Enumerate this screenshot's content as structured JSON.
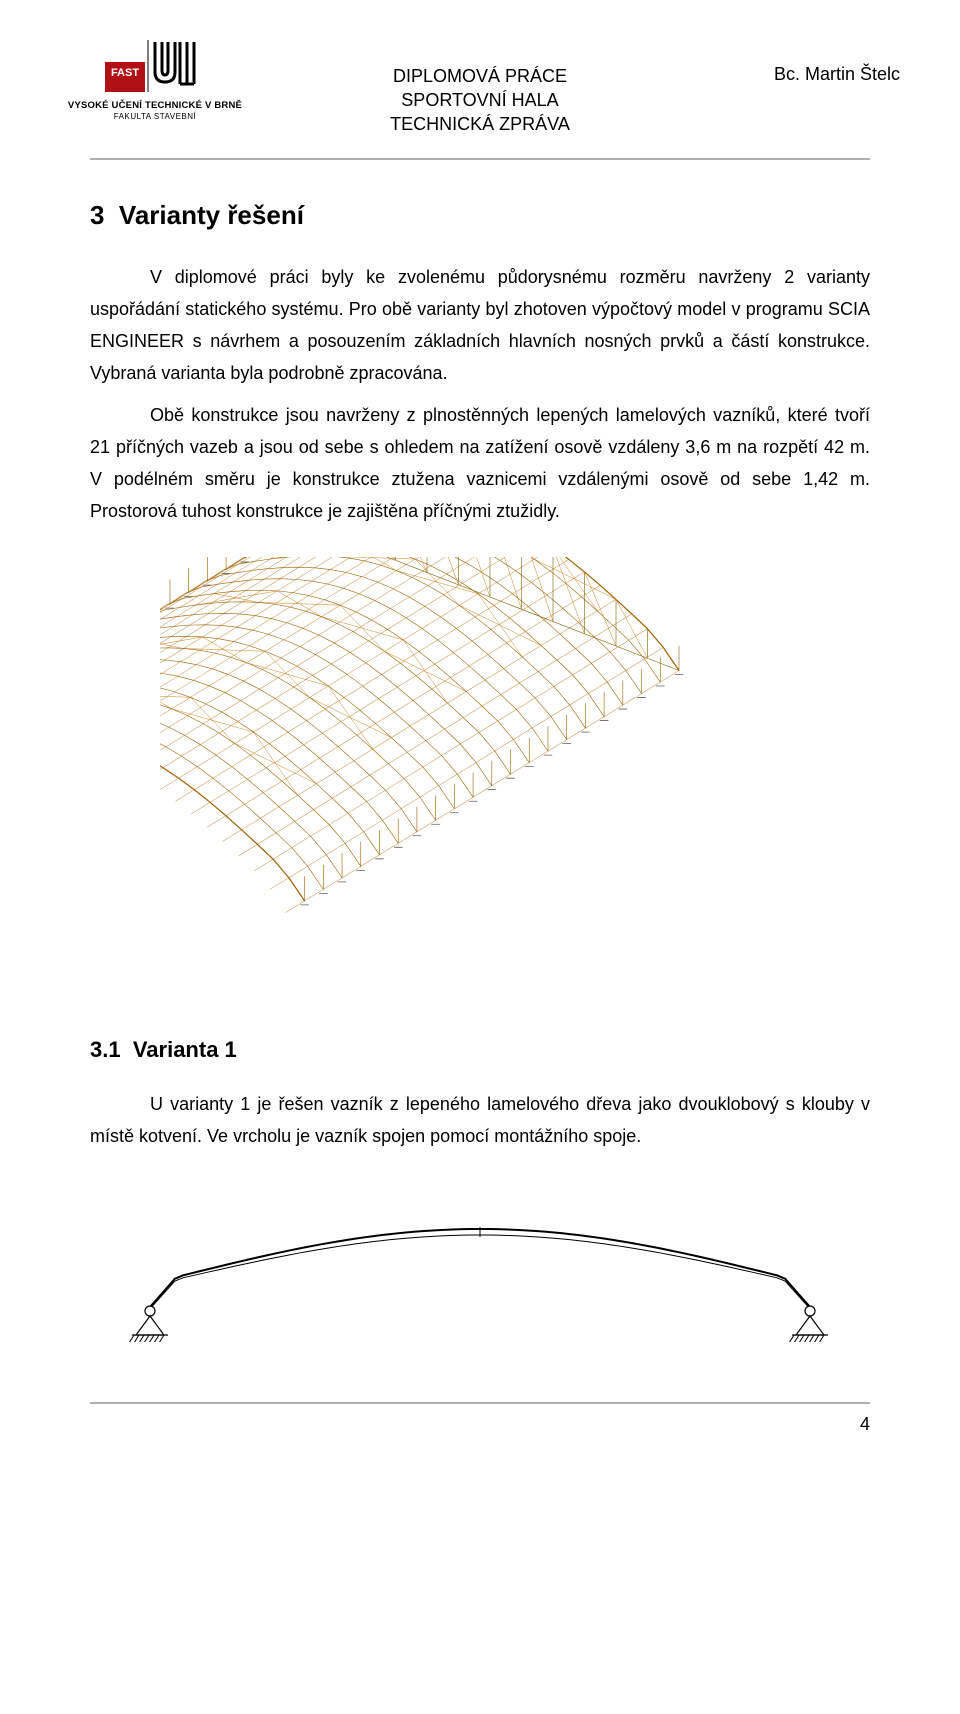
{
  "header": {
    "logo_line1": "VYSOKÉ UČENÍ TECHNICKÉ V BRNĚ",
    "logo_line2": "FAKULTA STAVEBNÍ",
    "center_line1": "DIPLOMOVÁ PRÁCE",
    "center_line2": "SPORTOVNÍ HALA",
    "center_line3": "TECHNICKÁ ZPRÁVA",
    "author": "Bc. Martin Štelc"
  },
  "section": {
    "number": "3",
    "title": "Varianty řešení",
    "para1": "V diplomové práci byly ke zvolenému půdorysnému rozměru navrženy 2 varianty uspořádání statického systému.",
    "para2": "Pro obě varianty byl zhotoven výpočtový model v programu SCIA ENGINEER s návrhem a posouzením základních hlavních nosných prvků a částí konstrukce. Vybraná varianta byla podrobně zpracována.",
    "para3": "Obě konstrukce jsou navrženy z plnostěnných lepených lamelových vazníků, které tvoří 21 příčných vazeb a jsou od sebe s ohledem na zatížení osově vzdáleny 3,6 m na rozpětí 42 m. V podélném směru je konstrukce ztužena vaznicemi vzdálenými osově od sebe 1,42 m. Prostorová tuhost konstrukce je zajištěna příčnými ztužidly."
  },
  "subsection": {
    "number": "3.1",
    "title": "Varianta 1",
    "para": "U varianty 1 je řešen vazník z lepeného lamelového dřeva jako dvouklobový s klouby v místě kotvení. Ve vrcholu je vazník spojen pomocí montážního spoje."
  },
  "footer": {
    "page_number": "4"
  },
  "figure_3d": {
    "type": "3d-wireframe",
    "structure": "barrel-vault sports hall",
    "frames": 21,
    "frame_spacing_m": 3.6,
    "span_m": 42,
    "purlin_spacing_m": 1.42,
    "colors": {
      "frame_major": "#a06000",
      "purlin_major": "#806000",
      "bracing": "#d08020",
      "wireframe_light": "#cda060",
      "support": "#606060",
      "background": "#ffffff"
    },
    "line_widths": {
      "frame_major": 1.2,
      "purlin": 0.6,
      "bracing": 0.5
    }
  },
  "figure_elevation": {
    "type": "2d-elevation",
    "description": "single two-hinged glulam arch frame with pinned bases",
    "span_m": 42,
    "colors": {
      "arch": "#000000",
      "support": "#000000",
      "pin_fill": "#ffffff",
      "hatch": "#000000",
      "background": "#ffffff"
    },
    "line_widths": {
      "arch_outer": 2.0,
      "arch_inner": 1.0,
      "support": 1.2
    }
  }
}
